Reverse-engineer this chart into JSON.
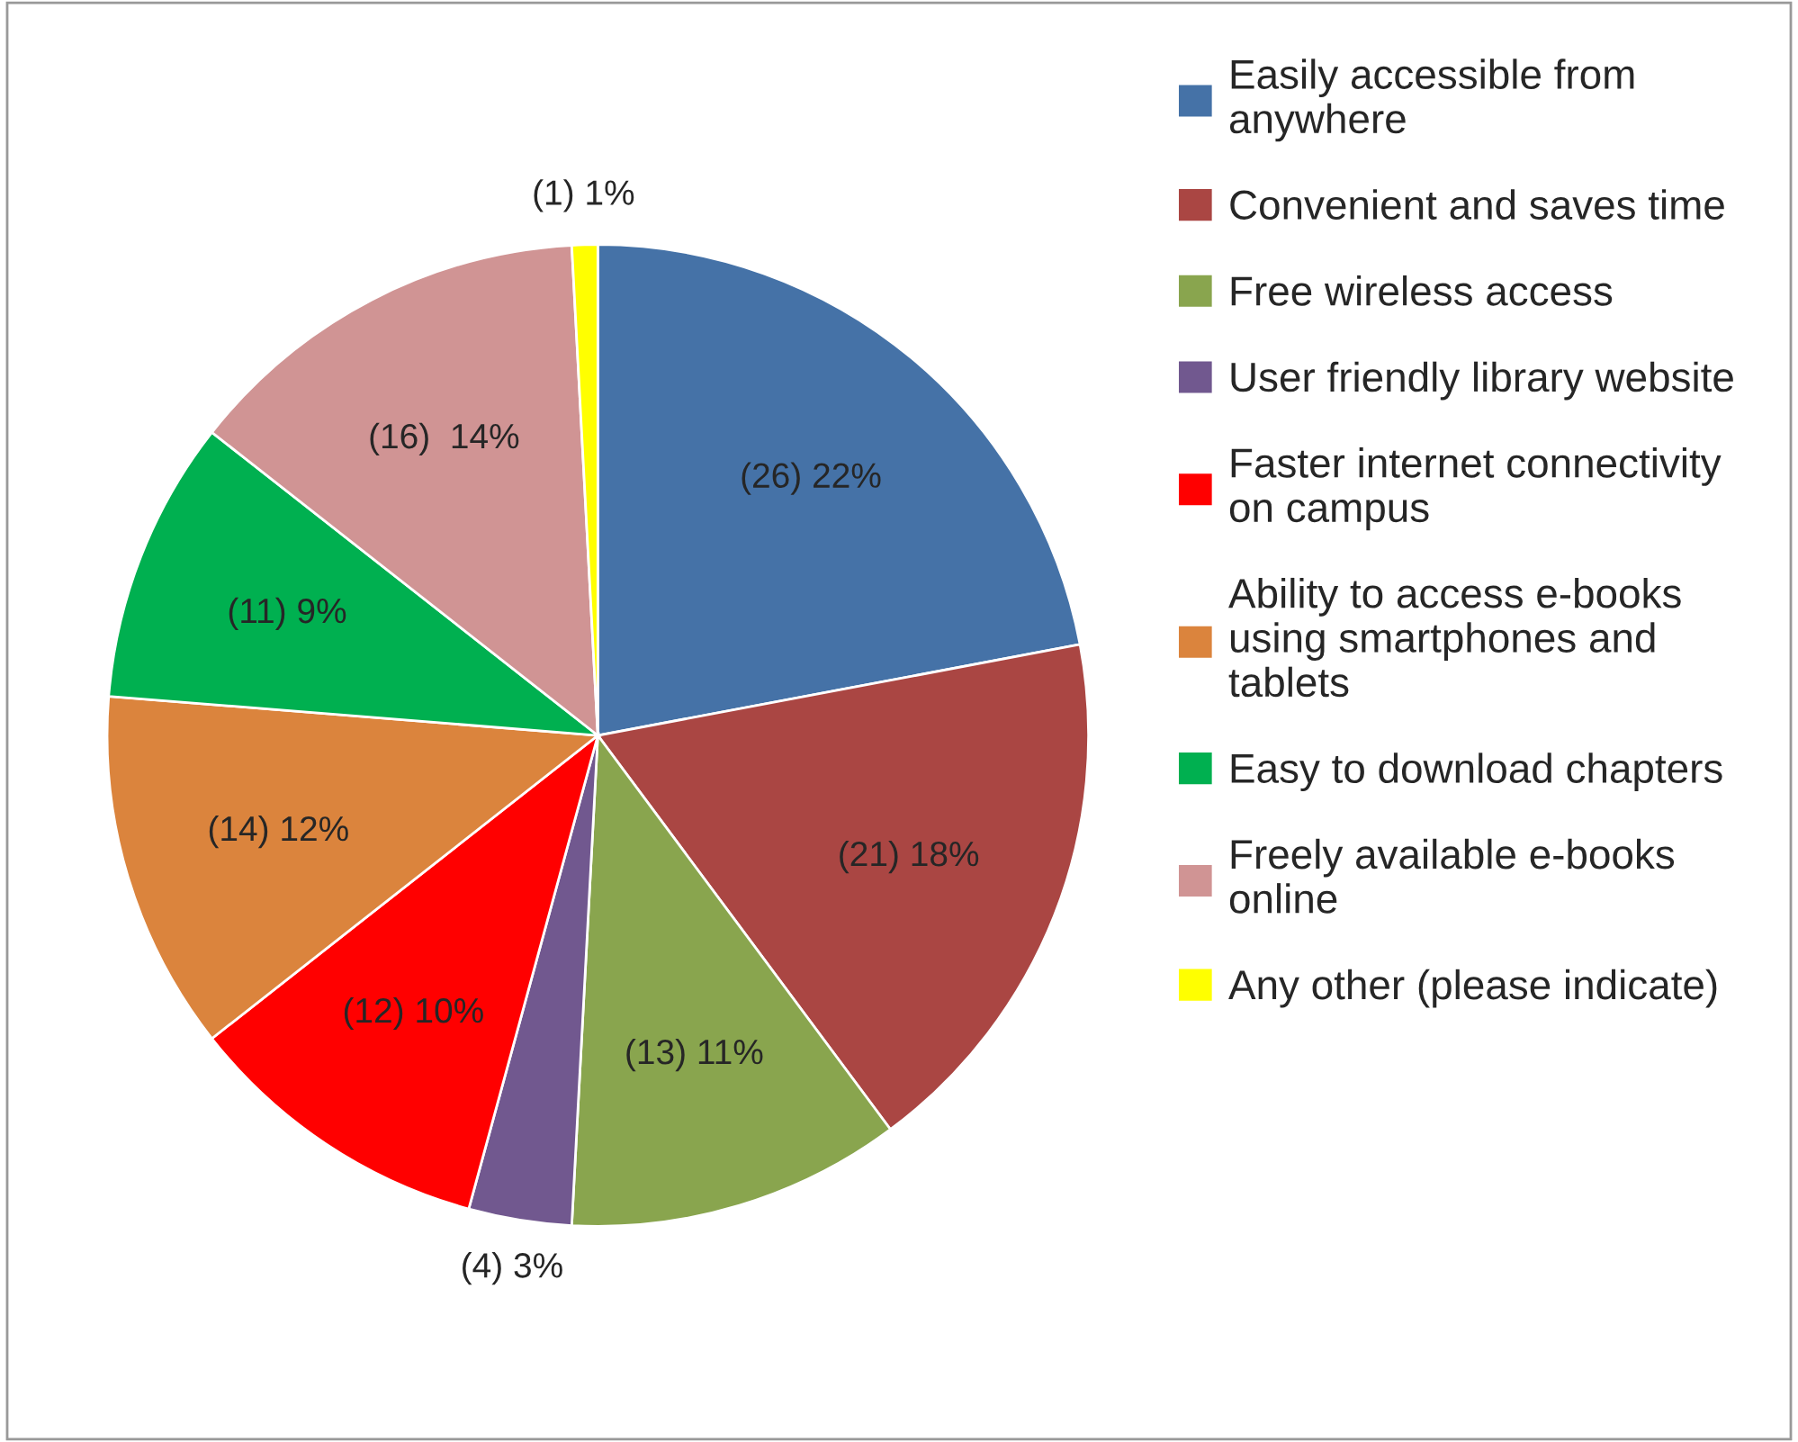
{
  "chart_data": {
    "type": "pie",
    "categories": [
      "Easily accessible from\nanywhere",
      "Convenient and saves time",
      "Free wireless access",
      "User friendly library website",
      "Faster internet connectivity\non campus",
      "Ability to access e-books\nusing smartphones and\ntablets",
      "Easy to download chapters",
      "Freely available e-books\nonline",
      "Any other (please indicate)"
    ],
    "values": [
      26,
      21,
      13,
      4,
      12,
      14,
      11,
      16,
      1
    ],
    "colors": [
      "#4572a7",
      "#aa4643",
      "#89a54e",
      "#71588f",
      "#ff0000",
      "#db843d",
      "#00b050",
      "#d09494",
      "#ffff00"
    ],
    "value_labels": [
      "(26) 22%",
      "(21) 18%",
      "(13) 11%",
      "(4) 3%",
      "(12) 10%",
      "(14) 12%",
      "(11) 9%",
      "(16)  14%",
      "(1) 1%"
    ],
    "legend": "right"
  }
}
